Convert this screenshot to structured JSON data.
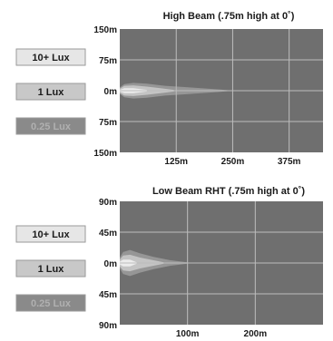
{
  "chart_data": [
    {
      "type": "heatmap",
      "title": "High Beam (.75m high at 0˚)",
      "x_ticks": [
        "125m",
        "250m",
        "375m"
      ],
      "x_tick_values": [
        125,
        250,
        375
      ],
      "xlim": [
        0,
        450
      ],
      "y_ticks": [
        "150m",
        "75m",
        "0m",
        "75m",
        "150m"
      ],
      "y_tick_values": [
        150,
        75,
        0,
        -75,
        -150
      ],
      "ylim": [
        -150,
        150
      ],
      "grid": true,
      "legend_position": "left",
      "legend": [
        {
          "label": "10+ Lux",
          "color": "#e6e6e6",
          "text_color": "#1a1a1a"
        },
        {
          "label": "1 Lux",
          "color": "#c8c8c8",
          "text_color": "#1a1a1a"
        },
        {
          "label": "0.25 Lux",
          "color": "#8a8a8a",
          "text_color": "#b0b0b0"
        }
      ],
      "beam_profile": {
        "lux_0_25_reach": [
          0,
          10,
          30,
          60,
          100,
          140,
          180,
          220,
          240
        ],
        "lux_0_25_halfwidth": [
          8,
          16,
          19,
          17,
          12,
          9,
          6,
          3,
          1
        ],
        "lux_1_reach": [
          0,
          10,
          30,
          60,
          90,
          120
        ],
        "lux_1_halfwidth": [
          5,
          12,
          13,
          10,
          6,
          2
        ],
        "lux_10_reach": [
          0,
          10,
          30,
          60
        ],
        "lux_10_halfwidth": [
          2,
          6,
          6,
          2
        ]
      }
    },
    {
      "type": "heatmap",
      "title": "Low Beam RHT (.75m high at 0˚)",
      "x_ticks": [
        "100m",
        "200m"
      ],
      "x_tick_values": [
        100,
        200
      ],
      "xlim": [
        0,
        300
      ],
      "y_ticks": [
        "90m",
        "45m",
        "0m",
        "45m",
        "90m"
      ],
      "y_tick_values": [
        90,
        45,
        0,
        -45,
        -90
      ],
      "ylim": [
        -90,
        90
      ],
      "grid": true,
      "legend_position": "left",
      "legend": [
        {
          "label": "10+ Lux",
          "color": "#e6e6e6",
          "text_color": "#1a1a1a"
        },
        {
          "label": "1 Lux",
          "color": "#c8c8c8",
          "text_color": "#1a1a1a"
        },
        {
          "label": "0.25 Lux",
          "color": "#8a8a8a",
          "text_color": "#b0b0b0"
        }
      ],
      "beam_profile": {
        "lux_0_25_reach": [
          0,
          5,
          15,
          30,
          50,
          75,
          100
        ],
        "lux_0_25_halfwidth": [
          8,
          16,
          19,
          14,
          9,
          4,
          1
        ],
        "lux_1_reach": [
          0,
          5,
          15,
          30,
          50,
          65
        ],
        "lux_1_halfwidth": [
          5,
          11,
          12,
          8,
          4,
          1
        ],
        "lux_10_reach": [
          0,
          5,
          15,
          25
        ],
        "lux_10_halfwidth": [
          2,
          5,
          5,
          1
        ]
      }
    }
  ],
  "colors": {
    "plot_bg": "#6f6f6f",
    "grid": "#bdbdbd",
    "beam_low": "#9a9a9a",
    "beam_mid": "#c9c9c9",
    "beam_high": "#eeeeee"
  }
}
